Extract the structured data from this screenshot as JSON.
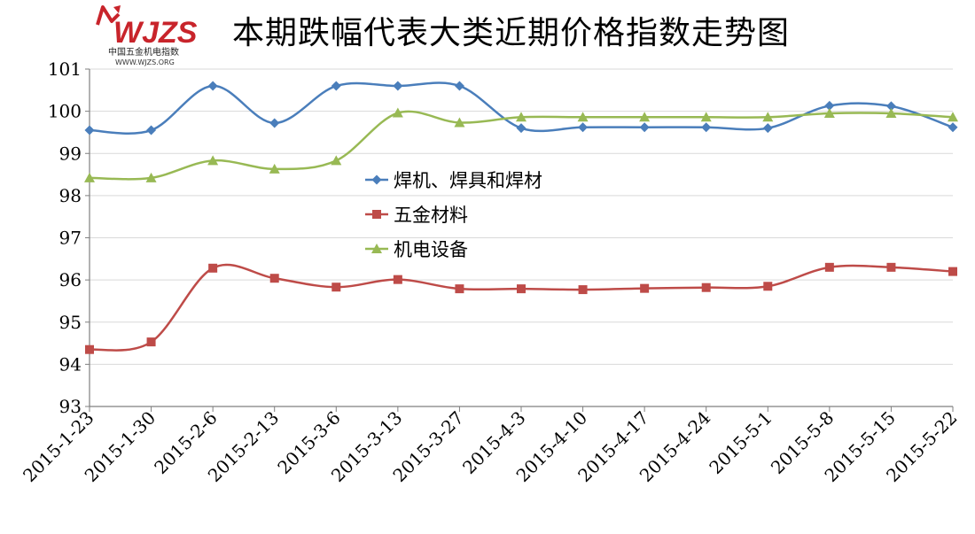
{
  "logo": {
    "wordmark": "WJZS",
    "subtitle": "中国五金机电指数",
    "url": "WWW.WJZS.ORG"
  },
  "chart_data": {
    "type": "line",
    "title": "本期跌幅代表大类近期价格指数走势图",
    "xlabel": "",
    "ylabel": "",
    "ylim": [
      93,
      101
    ],
    "yticks": [
      93,
      94,
      95,
      96,
      97,
      98,
      99,
      100,
      101
    ],
    "grid": true,
    "legend_position": "center",
    "x": [
      "2015-1-23",
      "2015-1-30",
      "2015-2-6",
      "2015-2-13",
      "2015-3-6",
      "2015-3-13",
      "2015-3-27",
      "2015-4-3",
      "2015-4-10",
      "2015-4-17",
      "2015-4-24",
      "2015-5-1",
      "2015-5-8",
      "2015-5-15",
      "2015-5-22"
    ],
    "series": [
      {
        "name": "焊机、焊具和焊材",
        "color": "#4A7EBB",
        "marker": "diamond",
        "values": [
          99.55,
          99.55,
          100.6,
          99.72,
          100.6,
          100.6,
          100.6,
          99.6,
          99.62,
          99.62,
          99.62,
          99.6,
          100.13,
          100.12,
          99.62
        ]
      },
      {
        "name": "五金材料",
        "color": "#BE4B48",
        "marker": "square",
        "values": [
          94.35,
          94.53,
          96.28,
          96.04,
          95.83,
          96.01,
          95.79,
          95.79,
          95.77,
          95.8,
          95.82,
          95.85,
          96.3,
          96.3,
          96.2
        ]
      },
      {
        "name": "机电设备",
        "color": "#98B954",
        "marker": "triangle",
        "values": [
          98.42,
          98.42,
          98.83,
          98.63,
          98.83,
          99.96,
          99.73,
          99.86,
          99.86,
          99.86,
          99.86,
          99.86,
          99.95,
          99.95,
          99.86
        ]
      }
    ]
  }
}
